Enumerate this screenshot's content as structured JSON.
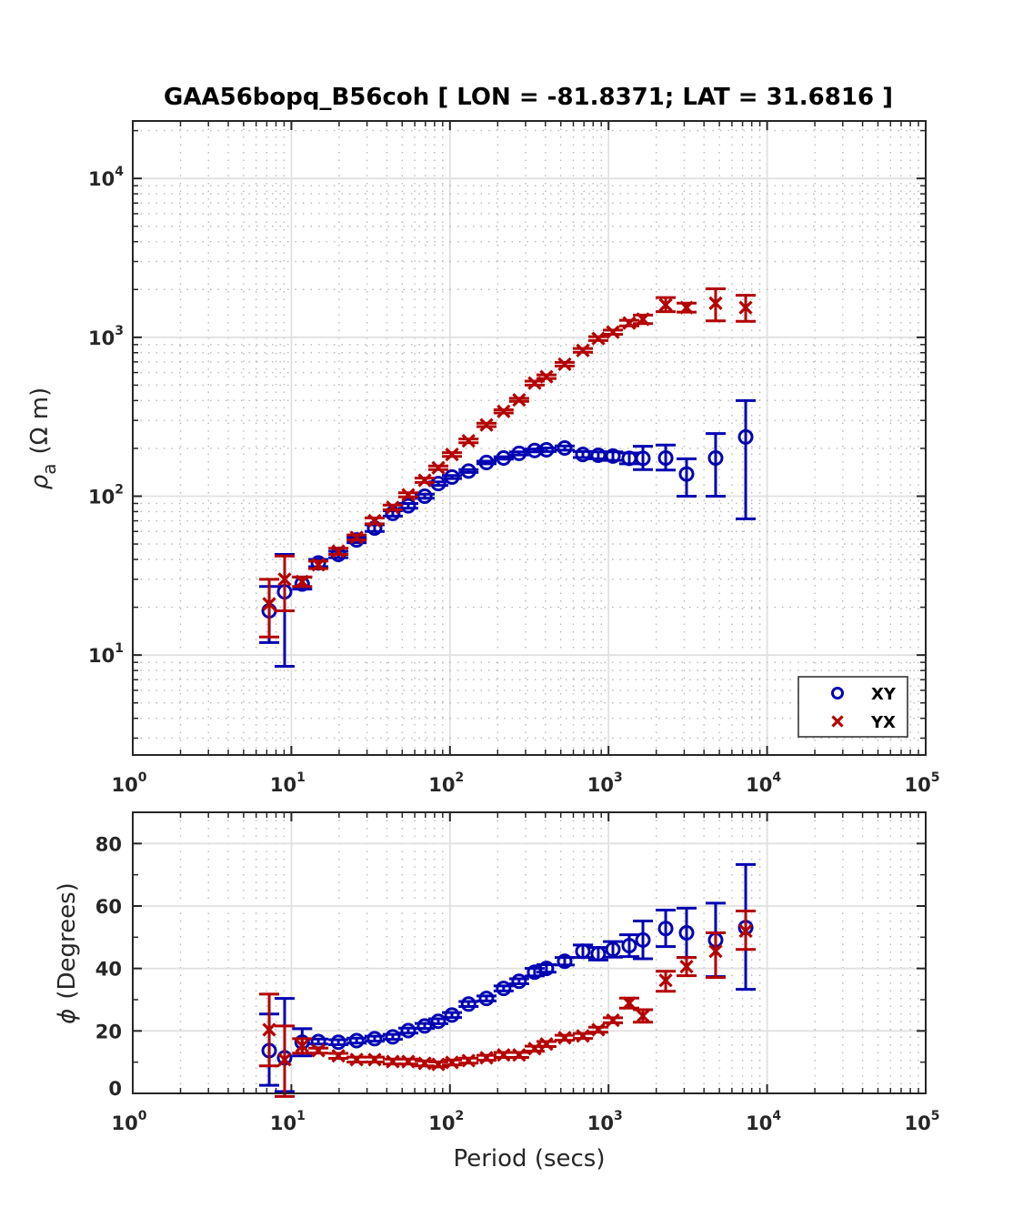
{
  "chart_data": [
    {
      "id": "apparent-resistivity",
      "type": "scatter",
      "title": "GAA56bopq_B56coh [ LON = -81.8371; LAT = 31.6816 ]",
      "xlabel": "Period (secs)",
      "ylabel_symbol": "ρ",
      "ylabel_subscript": "a",
      "ylabel_units": "(Ω m)",
      "xscale": "log",
      "yscale": "log",
      "xlim": [
        1,
        100000
      ],
      "ylim": [
        2.35,
        23000
      ],
      "x_ticks": [
        1,
        10,
        100,
        1000,
        10000,
        100000
      ],
      "x_tick_labels": [
        {
          "base": "10",
          "exp": "0"
        },
        {
          "base": "10",
          "exp": "1"
        },
        {
          "base": "10",
          "exp": "2"
        },
        {
          "base": "10",
          "exp": "3"
        },
        {
          "base": "10",
          "exp": "4"
        },
        {
          "base": "10",
          "exp": "5"
        }
      ],
      "y_ticks": [
        10,
        100,
        1000,
        10000
      ],
      "y_tick_labels": [
        {
          "base": "10",
          "exp": "1"
        },
        {
          "base": "10",
          "exp": "2"
        },
        {
          "base": "10",
          "exp": "3"
        },
        {
          "base": "10",
          "exp": "4"
        }
      ],
      "grid": true,
      "minor_grid": true,
      "legend": {
        "placement": "bottom-right",
        "entries": [
          {
            "label": "XY",
            "marker": "circle",
            "color": "#0000b3"
          },
          {
            "label": "YX",
            "marker": "x",
            "color": "#b30000"
          }
        ]
      },
      "x": [
        7.25,
        9.07,
        11.7,
        14.8,
        19.8,
        25.8,
        33.5,
        43.6,
        54.6,
        69.3,
        84.5,
        103,
        131,
        170,
        218,
        273,
        342,
        406,
        529,
        689,
        862,
        1066,
        1351,
        1648,
        2293,
        3105,
        4735,
        7326
      ],
      "series": [
        {
          "name": "XY",
          "color": "#0000b3",
          "marker": "circle",
          "values": [
            19,
            25,
            28,
            38,
            43,
            53,
            63,
            78,
            87,
            100,
            120,
            132,
            144,
            163,
            174,
            186,
            194,
            196,
            201,
            183,
            181,
            179,
            173,
            173,
            174,
            138,
            174,
            236
          ],
          "err_low": [
            12,
            8.5,
            26,
            36,
            41,
            51,
            60,
            75,
            84,
            97,
            117,
            129,
            141,
            160,
            171,
            182,
            190,
            191,
            195,
            175,
            172,
            168,
            160,
            147,
            146,
            100,
            100,
            72
          ],
          "err_high": [
            27,
            43,
            31,
            40,
            45,
            55,
            66,
            81,
            90,
            103,
            123,
            135,
            147,
            166,
            177,
            190,
            198,
            201,
            207,
            191,
            190,
            190,
            187,
            206,
            210,
            172,
            248,
            400
          ]
        },
        {
          "name": "YX",
          "color": "#b30000",
          "marker": "x",
          "values": [
            21,
            30,
            29,
            37,
            45,
            55,
            70,
            85,
            102,
            126,
            151,
            183,
            223,
            281,
            342,
            404,
            515,
            565,
            677,
            827,
            983,
            1078,
            1230,
            1300,
            1600,
            1540,
            1640,
            1540
          ],
          "err_low": [
            13,
            19,
            27,
            35,
            43,
            53,
            67,
            82,
            99,
            122,
            147,
            178,
            217,
            274,
            334,
            395,
            500,
            550,
            660,
            805,
            955,
            1045,
            1180,
            1220,
            1450,
            1440,
            1270,
            1260
          ],
          "err_high": [
            30,
            42,
            31,
            39,
            47,
            57,
            73,
            88,
            105,
            130,
            155,
            188,
            229,
            288,
            350,
            413,
            530,
            580,
            695,
            850,
            1010,
            1110,
            1280,
            1380,
            1780,
            1640,
            2020,
            1840
          ]
        }
      ]
    },
    {
      "id": "phase",
      "type": "scatter",
      "title": "",
      "xlabel": "Period (secs)",
      "ylabel_symbol": "ϕ",
      "ylabel_units": "(Degrees)",
      "xscale": "log",
      "yscale": "linear",
      "xlim": [
        1,
        100000
      ],
      "ylim": [
        0,
        90
      ],
      "x_ticks": [
        1,
        10,
        100,
        1000,
        10000,
        100000
      ],
      "x_tick_labels": [
        {
          "base": "10",
          "exp": "0"
        },
        {
          "base": "10",
          "exp": "1"
        },
        {
          "base": "10",
          "exp": "2"
        },
        {
          "base": "10",
          "exp": "3"
        },
        {
          "base": "10",
          "exp": "4"
        },
        {
          "base": "10",
          "exp": "5"
        }
      ],
      "y_ticks": [
        0,
        20,
        40,
        60,
        80
      ],
      "y_tick_labels": [
        "0",
        "20",
        "40",
        "60",
        "80"
      ],
      "grid": true,
      "x": [
        7.25,
        9.07,
        11.7,
        14.8,
        19.8,
        25.8,
        33.5,
        43.6,
        54.6,
        69.3,
        84.5,
        103,
        131,
        170,
        218,
        273,
        342,
        406,
        529,
        689,
        862,
        1066,
        1351,
        1648,
        2293,
        3105,
        4735,
        7326
      ],
      "series": [
        {
          "name": "XY",
          "color": "#0000b3",
          "marker": "circle",
          "values": [
            13.7,
            11.4,
            16.4,
            16.6,
            16.4,
            16.9,
            17.5,
            18.1,
            20.1,
            21.6,
            23.1,
            25.1,
            28.6,
            30.4,
            33.6,
            35.9,
            38.8,
            40.0,
            42.3,
            45.5,
            44.7,
            46.1,
            47.3,
            49.1,
            52.8,
            51.4,
            49.1,
            53.1
          ],
          "err_low": [
            2.6,
            0.6,
            12.0,
            15.8,
            15.6,
            16.1,
            16.7,
            17.3,
            19.3,
            20.8,
            22.3,
            24.3,
            27.8,
            29.6,
            32.8,
            35.1,
            37.6,
            38.8,
            41.1,
            43.5,
            42.7,
            43.6,
            43.8,
            43.1,
            47.0,
            43.5,
            37.4,
            33.3
          ],
          "err_high": [
            25.4,
            30.4,
            20.7,
            17.4,
            17.2,
            17.7,
            18.3,
            18.9,
            20.9,
            22.4,
            23.9,
            25.9,
            29.4,
            31.2,
            34.4,
            36.7,
            40.0,
            41.2,
            43.5,
            47.5,
            46.7,
            48.6,
            50.8,
            55.2,
            58.7,
            59.3,
            60.9,
            73.3
          ]
        },
        {
          "name": "YX",
          "color": "#b30000",
          "marker": "x",
          "values": [
            20.4,
            10.8,
            15.2,
            13.7,
            12.0,
            10.8,
            10.8,
            10.2,
            10.2,
            9.6,
            9.3,
            9.9,
            10.5,
            11.4,
            12.3,
            12.3,
            14.3,
            15.8,
            17.8,
            18.4,
            20.4,
            23.4,
            28.9,
            24.8,
            36.2,
            40.6,
            45.5,
            52.0
          ],
          "err_low": [
            8.8,
            -1.0,
            12.9,
            12.9,
            11.2,
            10.0,
            10.0,
            9.4,
            9.4,
            8.8,
            8.5,
            9.1,
            9.7,
            10.6,
            11.5,
            11.5,
            13.5,
            15.0,
            17.0,
            17.6,
            19.6,
            22.6,
            27.3,
            22.8,
            32.7,
            37.7,
            37.1,
            46.1
          ],
          "err_high": [
            31.8,
            21.6,
            17.5,
            14.5,
            12.8,
            11.6,
            11.6,
            11.0,
            11.0,
            10.4,
            10.1,
            10.7,
            11.3,
            12.2,
            13.1,
            13.1,
            15.1,
            16.6,
            18.6,
            19.2,
            21.2,
            24.2,
            30.5,
            26.8,
            39.1,
            43.5,
            51.4,
            58.4
          ]
        }
      ]
    }
  ]
}
